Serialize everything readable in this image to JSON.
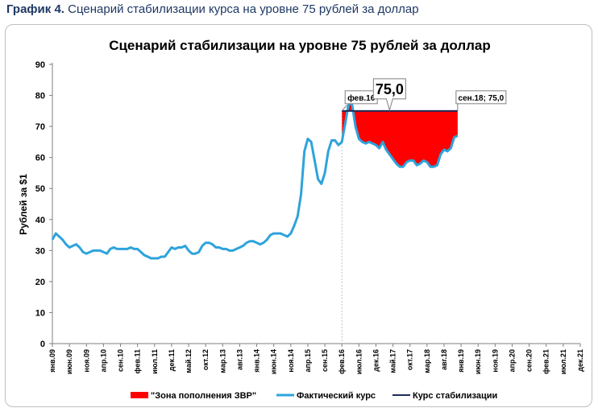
{
  "caption": {
    "prefix": "График 4.",
    "text": " Сценарий стабилизации курса на уровне 75 рублей за доллар"
  },
  "chart_data": {
    "type": "line",
    "title": "Сценарий стабилизации  на уровне 75 рублей за доллар",
    "ylabel": "Рублей за $1",
    "ylim": [
      0,
      90
    ],
    "yticks": [
      0,
      10,
      20,
      30,
      40,
      50,
      60,
      70,
      80,
      90
    ],
    "grid": false,
    "x_tick_labels": [
      "янв.09",
      "июн.09",
      "ноя.09",
      "апр.10",
      "сен.10",
      "фев.11",
      "июл.11",
      "дек.11",
      "май.12",
      "окт.12",
      "мар.13",
      "авг.13",
      "янв.14",
      "июн.14",
      "ноя.14",
      "апр.15",
      "сен.15",
      "фев.16",
      "июл.16",
      "дек.16",
      "май.17",
      "окт.17",
      "мар.18",
      "авг.18",
      "янв.19",
      "июн.19",
      "ноя.19",
      "апр.20",
      "сен.20",
      "фев.21",
      "июл.21",
      "дек.21"
    ],
    "actual_series": {
      "name": "Фактический курс",
      "color": "#2ea3dc",
      "start": "янв.09",
      "values": [
        33.5,
        35.5,
        34.5,
        33.5,
        32,
        31,
        31.5,
        32,
        31,
        29.5,
        29,
        29.5,
        30,
        30,
        30,
        29.5,
        29,
        30.5,
        31,
        30.5,
        30.5,
        30.5,
        30.5,
        31,
        30.5,
        30.5,
        29.5,
        28.5,
        28,
        27.5,
        27.5,
        27.5,
        28,
        28,
        29.5,
        31,
        30.5,
        31,
        31,
        31.5,
        30,
        29,
        29,
        29.5,
        31.5,
        32.5,
        32.5,
        32,
        31,
        31,
        30.5,
        30.5,
        30,
        30,
        30.5,
        31,
        31.5,
        32.5,
        33,
        33,
        32.5,
        32,
        32.5,
        33.5,
        35,
        35.5,
        35.5,
        35.5,
        35,
        34.5,
        35.5,
        38,
        41,
        48,
        62,
        66,
        65,
        59,
        53,
        51.5,
        55,
        62,
        65.5,
        65.5,
        64,
        65,
        71,
        77.5,
        77,
        70,
        66,
        65,
        64.5,
        65,
        64.5,
        64,
        63,
        65,
        62.5,
        61,
        59.5,
        58,
        57,
        57,
        58.5,
        59,
        59,
        57.5,
        58,
        59,
        58.5,
        57,
        57,
        57.5,
        61,
        62.5,
        62,
        63,
        66.5,
        67
      ]
    },
    "stabilization": {
      "name": "Курс стабилизации",
      "color": "#1f2a5a",
      "value": 75.0,
      "from": "фев.16",
      "to": "сен.18"
    },
    "fill_zone": {
      "name": "\"Зона пополнения ЗВР\"",
      "color": "#ff0000"
    },
    "annotations": {
      "start_label": "фев.16",
      "end_label": "сен.18; 75,0",
      "value_label": "75,0"
    },
    "legend": {
      "position": "bottom",
      "items": [
        "\"Зона пополнения ЗВР\"",
        "Фактический курс",
        "Курс стабилизации"
      ]
    }
  }
}
